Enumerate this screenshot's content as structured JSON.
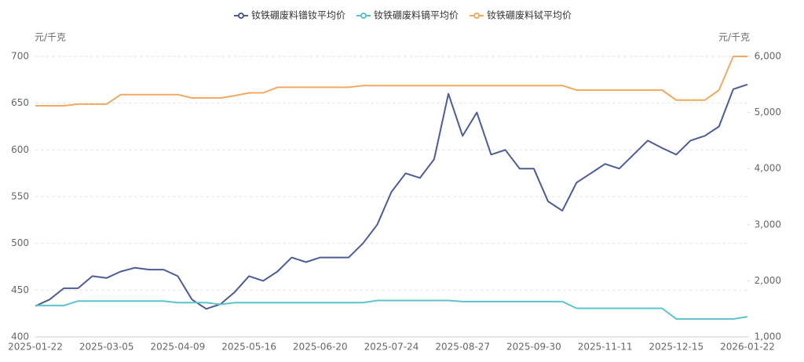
{
  "chart_data": {
    "type": "line",
    "y_label": "元/千克",
    "y2_label": "元/千克",
    "categories": [
      "2025-01-22",
      null,
      null,
      null,
      null,
      "2025-03-05",
      null,
      null,
      null,
      null,
      "2025-04-09",
      null,
      null,
      null,
      null,
      "2025-05-16",
      null,
      null,
      null,
      null,
      "2025-06-20",
      null,
      null,
      null,
      null,
      "2025-07-24",
      null,
      null,
      null,
      null,
      "2025-08-27",
      null,
      null,
      null,
      null,
      "2025-09-30",
      null,
      null,
      null,
      null,
      "2025-11-11",
      null,
      null,
      null,
      null,
      "2025-12-15",
      null,
      null,
      null,
      null,
      "2026-01-22"
    ],
    "series": [
      {
        "name": "钕铁硼废料镨钕平均价",
        "color": "#4d5b96",
        "values": [
          433,
          440,
          452,
          452,
          465,
          463,
          470,
          474,
          472,
          472,
          465,
          440,
          430,
          435,
          448,
          465,
          460,
          470,
          485,
          480,
          485,
          485,
          485,
          500,
          520,
          555,
          575,
          570,
          590,
          660,
          615,
          640,
          595,
          600,
          580,
          580,
          545,
          535,
          565,
          575,
          585,
          580,
          595,
          610,
          602,
          595,
          610,
          615,
          625,
          665,
          670
        ]
      },
      {
        "name": "钕铁硼废料镝平均价",
        "color": "#5bc3cb",
        "axis": "y2",
        "values": [
          1560,
          1560,
          1560,
          1640,
          1640,
          1640,
          1640,
          1640,
          1640,
          1640,
          1610,
          1610,
          1610,
          1580,
          1610,
          1610,
          1610,
          1610,
          1610,
          1610,
          1610,
          1610,
          1610,
          1610,
          1650,
          1650,
          1650,
          1650,
          1650,
          1650,
          1630,
          1630,
          1630,
          1630,
          1630,
          1630,
          1630,
          1630,
          1510,
          1510,
          1510,
          1510,
          1510,
          1510,
          1510,
          1320,
          1320,
          1320,
          1320,
          1320,
          1360
        ]
      },
      {
        "name": "钕铁硼废料铽平均价",
        "color": "#f2a961",
        "axis": "y2",
        "values": [
          5120,
          5120,
          5120,
          5150,
          5150,
          5150,
          5320,
          5320,
          5320,
          5320,
          5320,
          5260,
          5260,
          5260,
          5300,
          5350,
          5350,
          5450,
          5450,
          5450,
          5450,
          5450,
          5450,
          5480,
          5480,
          5480,
          5480,
          5480,
          5480,
          5480,
          5480,
          5480,
          5480,
          5480,
          5480,
          5480,
          5480,
          5480,
          5400,
          5400,
          5400,
          5400,
          5400,
          5400,
          5400,
          5220,
          5220,
          5220,
          5400,
          6000,
          6000
        ]
      }
    ],
    "ylim": [
      400,
      700
    ],
    "yticks": [
      400,
      450,
      500,
      550,
      600,
      650,
      700
    ],
    "y2lim": [
      1000,
      6000
    ],
    "y2ticks": [
      {
        "value": 1000,
        "label": "1,000"
      },
      {
        "value": 2000,
        "label": "2,000"
      },
      {
        "value": 3000,
        "label": "3,000"
      },
      {
        "value": 4000,
        "label": "4,000"
      },
      {
        "value": 5000,
        "label": "5,000"
      },
      {
        "value": 6000,
        "label": "6,000"
      }
    ],
    "grid": true,
    "legend": "top"
  }
}
